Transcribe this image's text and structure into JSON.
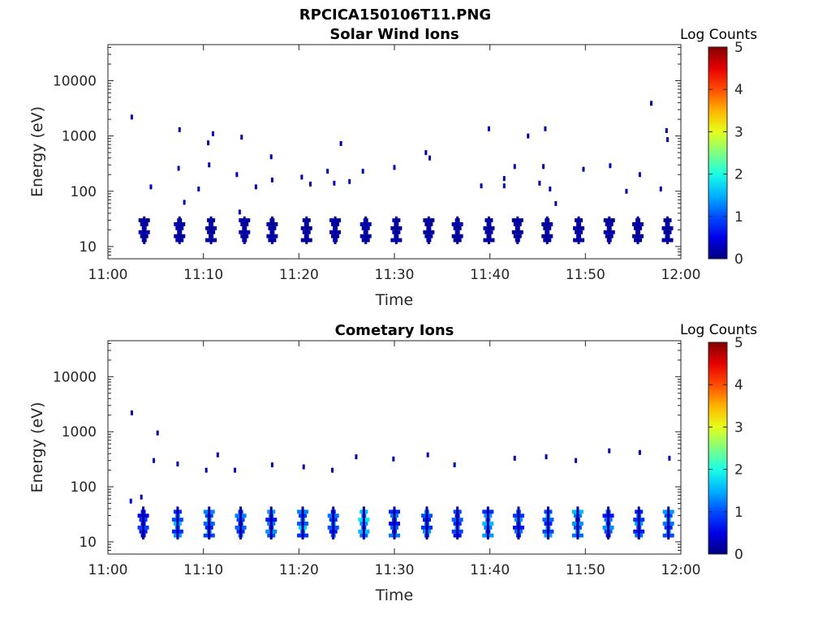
{
  "figure_title": "RPCICA150106T11.PNG",
  "chart_data": [
    {
      "type": "heatmap",
      "title": "Solar Wind Ions",
      "xlabel": "Time",
      "ylabel": "Energy (eV)",
      "yscale": "log",
      "ylim": [
        6,
        45000
      ],
      "xlim": [
        "11:00",
        "12:00"
      ],
      "xticks": [
        "11:00",
        "11:10",
        "11:20",
        "11:30",
        "11:40",
        "11:50",
        "12:00"
      ],
      "yticks": [
        "10",
        "100",
        "1000",
        "10000"
      ],
      "colorbar": {
        "label": "Log Counts",
        "min": 0,
        "max": 5,
        "ticks": [
          "0",
          "1",
          "2",
          "3",
          "4",
          "5"
        ],
        "colormap": "jet"
      },
      "cells": [
        {
          "t": 2.5,
          "e": 2200,
          "c": 0.4
        },
        {
          "t": 4.5,
          "e": 120,
          "c": 0.3
        },
        {
          "t": 7.5,
          "e": 1300,
          "c": 0.2
        },
        {
          "t": 7.4,
          "e": 260,
          "c": 0.2
        },
        {
          "t": 8.0,
          "e": 63,
          "c": 0.2
        },
        {
          "t": 9.5,
          "e": 110,
          "c": 0.2
        },
        {
          "t": 10.5,
          "e": 750,
          "c": 0.2
        },
        {
          "t": 10.6,
          "e": 300,
          "c": 0.2
        },
        {
          "t": 11.0,
          "e": 1100,
          "c": 0.3
        },
        {
          "t": 13.5,
          "e": 200,
          "c": 0.3
        },
        {
          "t": 14.0,
          "e": 950,
          "c": 0.2
        },
        {
          "t": 13.8,
          "e": 42,
          "c": 0.2
        },
        {
          "t": 15.5,
          "e": 120,
          "c": 0.2
        },
        {
          "t": 17.1,
          "e": 420,
          "c": 0.3
        },
        {
          "t": 17.2,
          "e": 160,
          "c": 0.2
        },
        {
          "t": 20.3,
          "e": 180,
          "c": 0.2
        },
        {
          "t": 21.2,
          "e": 135,
          "c": 0.2
        },
        {
          "t": 23.0,
          "e": 230,
          "c": 0.2
        },
        {
          "t": 23.7,
          "e": 140,
          "c": 0.3
        },
        {
          "t": 24.4,
          "e": 730,
          "c": 0.2
        },
        {
          "t": 25.3,
          "e": 150,
          "c": 0.3
        },
        {
          "t": 26.7,
          "e": 230,
          "c": 0.2
        },
        {
          "t": 30.0,
          "e": 270,
          "c": 0.2
        },
        {
          "t": 33.3,
          "e": 500,
          "c": 0.2
        },
        {
          "t": 33.7,
          "e": 400,
          "c": 0.2
        },
        {
          "t": 39.1,
          "e": 125,
          "c": 0.2
        },
        {
          "t": 39.9,
          "e": 1350,
          "c": 0.3
        },
        {
          "t": 41.5,
          "e": 170,
          "c": 0.2
        },
        {
          "t": 41.5,
          "e": 125,
          "c": 0.2
        },
        {
          "t": 42.6,
          "e": 280,
          "c": 0.2
        },
        {
          "t": 44.0,
          "e": 1000,
          "c": 0.2
        },
        {
          "t": 45.2,
          "e": 140,
          "c": 0.2
        },
        {
          "t": 45.8,
          "e": 1350,
          "c": 0.3
        },
        {
          "t": 45.6,
          "e": 280,
          "c": 0.2
        },
        {
          "t": 46.3,
          "e": 110,
          "c": 0.2
        },
        {
          "t": 46.9,
          "e": 60,
          "c": 0.2
        },
        {
          "t": 49.8,
          "e": 250,
          "c": 0.2
        },
        {
          "t": 52.6,
          "e": 290,
          "c": 0.3
        },
        {
          "t": 54.3,
          "e": 100,
          "c": 0.2
        },
        {
          "t": 55.7,
          "e": 200,
          "c": 0.3
        },
        {
          "t": 56.9,
          "e": 3900,
          "c": 0.2
        },
        {
          "t": 57.9,
          "e": 110,
          "c": 0.2
        },
        {
          "t": 58.5,
          "e": 1250,
          "c": 0.2
        },
        {
          "t": 58.6,
          "e": 860,
          "c": 0.2
        }
      ],
      "bursts": [
        {
          "t": 3.8,
          "e_range": [
            12,
            28
          ],
          "c": 0.2
        },
        {
          "t": 7.5,
          "e_range": [
            12,
            28
          ],
          "c": 0.2
        },
        {
          "t": 10.8,
          "e_range": [
            12,
            28
          ],
          "c": 0.2
        },
        {
          "t": 14.3,
          "e_range": [
            12,
            28
          ],
          "c": 0.2
        },
        {
          "t": 17.2,
          "e_range": [
            12,
            28
          ],
          "c": 0.2
        },
        {
          "t": 20.8,
          "e_range": [
            12,
            28
          ],
          "c": 0.2
        },
        {
          "t": 23.8,
          "e_range": [
            12,
            28
          ],
          "c": 0.2
        },
        {
          "t": 27.0,
          "e_range": [
            12,
            28
          ],
          "c": 0.2
        },
        {
          "t": 30.2,
          "e_range": [
            12,
            28
          ],
          "c": 0.2
        },
        {
          "t": 33.6,
          "e_range": [
            12,
            28
          ],
          "c": 0.2
        },
        {
          "t": 36.6,
          "e_range": [
            12,
            28
          ],
          "c": 0.2
        },
        {
          "t": 39.9,
          "e_range": [
            12,
            28
          ],
          "c": 0.2
        },
        {
          "t": 42.9,
          "e_range": [
            12,
            28
          ],
          "c": 0.2
        },
        {
          "t": 46.0,
          "e_range": [
            12,
            28
          ],
          "c": 0.2
        },
        {
          "t": 49.3,
          "e_range": [
            12,
            28
          ],
          "c": 0.2
        },
        {
          "t": 52.5,
          "e_range": [
            12,
            28
          ],
          "c": 0.2
        },
        {
          "t": 55.5,
          "e_range": [
            12,
            28
          ],
          "c": 0.2
        },
        {
          "t": 58.6,
          "e_range": [
            12,
            28
          ],
          "c": 0.2
        }
      ]
    },
    {
      "type": "heatmap",
      "title": "Cometary Ions",
      "xlabel": "Time",
      "ylabel": "Energy (eV)",
      "yscale": "log",
      "ylim": [
        6,
        45000
      ],
      "xlim": [
        "11:00",
        "12:00"
      ],
      "xticks": [
        "11:00",
        "11:10",
        "11:20",
        "11:30",
        "11:40",
        "11:50",
        "12:00"
      ],
      "yticks": [
        "10",
        "100",
        "1000",
        "10000"
      ],
      "colorbar": {
        "label": "Log Counts",
        "min": 0,
        "max": 5,
        "ticks": [
          "0",
          "1",
          "2",
          "3",
          "4",
          "5"
        ],
        "colormap": "jet"
      },
      "cells": [
        {
          "t": 2.5,
          "e": 2200,
          "c": 0.2
        },
        {
          "t": 5.2,
          "e": 950,
          "c": 0.2
        },
        {
          "t": 4.8,
          "e": 300,
          "c": 0.3
        },
        {
          "t": 2.4,
          "e": 55,
          "c": 0.4
        },
        {
          "t": 3.5,
          "e": 65,
          "c": 0.3
        },
        {
          "t": 7.3,
          "e": 260,
          "c": 0.2
        },
        {
          "t": 10.3,
          "e": 200,
          "c": 0.2
        },
        {
          "t": 11.5,
          "e": 380,
          "c": 0.2
        },
        {
          "t": 13.3,
          "e": 200,
          "c": 0.3
        },
        {
          "t": 17.2,
          "e": 250,
          "c": 0.2
        },
        {
          "t": 20.5,
          "e": 230,
          "c": 0.2
        },
        {
          "t": 23.5,
          "e": 200,
          "c": 0.2
        },
        {
          "t": 26.0,
          "e": 350,
          "c": 0.2
        },
        {
          "t": 29.9,
          "e": 320,
          "c": 0.2
        },
        {
          "t": 33.5,
          "e": 380,
          "c": 0.3
        },
        {
          "t": 36.3,
          "e": 250,
          "c": 0.2
        },
        {
          "t": 42.6,
          "e": 330,
          "c": 0.2
        },
        {
          "t": 45.9,
          "e": 350,
          "c": 0.2
        },
        {
          "t": 49.0,
          "e": 300,
          "c": 0.2
        },
        {
          "t": 52.5,
          "e": 450,
          "c": 0.2
        },
        {
          "t": 55.7,
          "e": 420,
          "c": 0.2
        },
        {
          "t": 58.8,
          "e": 330,
          "c": 0.2
        }
      ],
      "bursts": [
        {
          "t": 3.7,
          "e_range": [
            12,
            35
          ],
          "c": 0.9
        },
        {
          "t": 7.3,
          "e_range": [
            12,
            35
          ],
          "c": 1.5
        },
        {
          "t": 10.6,
          "e_range": [
            12,
            35
          ],
          "c": 1.4
        },
        {
          "t": 13.9,
          "e_range": [
            12,
            35
          ],
          "c": 1.2
        },
        {
          "t": 17.1,
          "e_range": [
            12,
            35
          ],
          "c": 1.3
        },
        {
          "t": 20.4,
          "e_range": [
            12,
            35
          ],
          "c": 1.6
        },
        {
          "t": 23.6,
          "e_range": [
            12,
            35
          ],
          "c": 1.3
        },
        {
          "t": 26.8,
          "e_range": [
            12,
            35
          ],
          "c": 1.7
        },
        {
          "t": 30.0,
          "e_range": [
            12,
            35
          ],
          "c": 1.2
        },
        {
          "t": 33.4,
          "e_range": [
            12,
            35
          ],
          "c": 1.3
        },
        {
          "t": 36.6,
          "e_range": [
            12,
            35
          ],
          "c": 1.2
        },
        {
          "t": 39.8,
          "e_range": [
            12,
            35
          ],
          "c": 1.5
        },
        {
          "t": 43.0,
          "e_range": [
            12,
            35
          ],
          "c": 1.3
        },
        {
          "t": 46.1,
          "e_range": [
            12,
            35
          ],
          "c": 1.4
        },
        {
          "t": 49.2,
          "e_range": [
            12,
            35
          ],
          "c": 1.5
        },
        {
          "t": 52.4,
          "e_range": [
            12,
            35
          ],
          "c": 1.3
        },
        {
          "t": 55.6,
          "e_range": [
            12,
            35
          ],
          "c": 1.3
        },
        {
          "t": 58.7,
          "e_range": [
            12,
            35
          ],
          "c": 1.5
        }
      ]
    }
  ]
}
